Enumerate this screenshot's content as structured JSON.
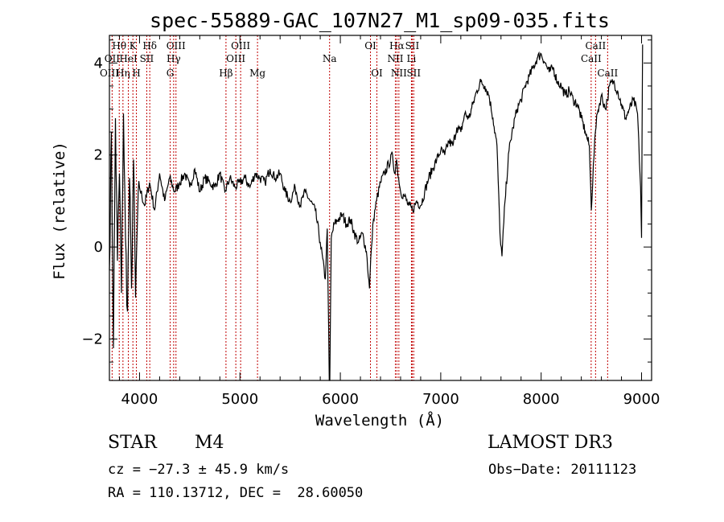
{
  "chart_data": {
    "type": "line",
    "title": "spec-55889-GAC_107N27_M1_sp09-035.fits",
    "xlabel": "Wavelength (Å)",
    "ylabel": "Flux (relative)",
    "xlim": [
      3700,
      9100
    ],
    "ylim": [
      -2.9,
      4.6
    ],
    "xticks": [
      4000,
      5000,
      6000,
      7000,
      8000,
      9000
    ],
    "xtick_labels": [
      "4000",
      "5000",
      "6000",
      "7000",
      "8000",
      "9000"
    ],
    "yticks": [
      -2,
      0,
      2,
      4
    ],
    "ytick_labels": [
      "−2",
      "0",
      "2",
      "4"
    ],
    "grid": false,
    "series": [
      {
        "name": "spectrum",
        "x": [
          3700,
          3720,
          3740,
          3760,
          3780,
          3800,
          3820,
          3840,
          3860,
          3880,
          3900,
          3920,
          3940,
          3960,
          3980,
          4000,
          4050,
          4100,
          4150,
          4200,
          4250,
          4300,
          4350,
          4400,
          4450,
          4500,
          4550,
          4600,
          4650,
          4700,
          4750,
          4800,
          4850,
          4900,
          4950,
          5000,
          5050,
          5100,
          5150,
          5200,
          5250,
          5300,
          5350,
          5400,
          5450,
          5500,
          5550,
          5600,
          5650,
          5700,
          5750,
          5800,
          5850,
          5870,
          5890,
          5895,
          5910,
          5940,
          5980,
          6020,
          6060,
          6100,
          6140,
          6180,
          6220,
          6260,
          6290,
          6310,
          6330,
          6360,
          6400,
          6440,
          6480,
          6520,
          6540,
          6560,
          6580,
          6600,
          6640,
          6680,
          6720,
          6760,
          6800,
          6840,
          6880,
          6920,
          6960,
          7000,
          7040,
          7080,
          7120,
          7160,
          7200,
          7240,
          7280,
          7320,
          7360,
          7400,
          7440,
          7480,
          7520,
          7560,
          7590,
          7610,
          7640,
          7680,
          7720,
          7760,
          7800,
          7840,
          7880,
          7920,
          7960,
          8000,
          8040,
          8080,
          8120,
          8160,
          8200,
          8240,
          8280,
          8320,
          8360,
          8400,
          8440,
          8480,
          8500,
          8520,
          8540,
          8560,
          8600,
          8640,
          8660,
          8680,
          8720,
          8760,
          8800,
          8840,
          8880,
          8920,
          8960,
          8990,
          9000,
          9010
        ],
        "values": [
          -0.5,
          2.5,
          -2.2,
          2.8,
          -0.3,
          1.6,
          -1.0,
          2.9,
          0.2,
          -1.4,
          1.5,
          -0.9,
          1.9,
          -1.1,
          0.6,
          1.3,
          0.9,
          1.4,
          0.8,
          1.6,
          1.0,
          1.5,
          1.2,
          1.4,
          1.6,
          1.3,
          1.7,
          1.2,
          1.5,
          1.4,
          1.3,
          1.6,
          1.2,
          1.5,
          1.3,
          1.4,
          1.5,
          1.3,
          1.6,
          1.5,
          1.4,
          1.7,
          1.5,
          1.6,
          1.2,
          1.0,
          1.3,
          0.9,
          1.2,
          1.0,
          0.8,
          0.1,
          -0.7,
          0.4,
          -2.9,
          -2.9,
          0.2,
          0.5,
          0.6,
          0.7,
          0.5,
          0.6,
          0.3,
          0.1,
          0.3,
          -0.1,
          -0.9,
          0.0,
          0.6,
          1.0,
          1.4,
          1.6,
          1.8,
          2.0,
          1.6,
          1.9,
          1.5,
          1.2,
          1.1,
          0.9,
          0.8,
          1.0,
          0.9,
          1.2,
          1.5,
          1.7,
          1.9,
          2.1,
          2.0,
          2.3,
          2.2,
          2.6,
          2.5,
          2.9,
          2.8,
          3.1,
          3.4,
          3.6,
          3.5,
          3.3,
          2.8,
          2.2,
          0.3,
          -0.2,
          1.0,
          2.1,
          2.6,
          3.0,
          3.2,
          3.5,
          3.7,
          3.9,
          4.1,
          4.2,
          4.0,
          3.8,
          3.9,
          3.6,
          3.5,
          3.3,
          3.4,
          3.2,
          3.1,
          2.8,
          2.5,
          2.2,
          0.8,
          1.8,
          2.5,
          2.9,
          3.3,
          3.0,
          3.2,
          3.5,
          3.6,
          3.4,
          3.1,
          2.8,
          3.0,
          3.2,
          2.9,
          1.3,
          0.2,
          4.4
        ]
      }
    ],
    "line_markers": [
      {
        "name": "Hθ",
        "wavelength": 3798,
        "row": 1
      },
      {
        "name": "OII",
        "wavelength": 3727,
        "row": 2
      },
      {
        "name": "OIII",
        "wavelength": 3700,
        "row": 3
      },
      {
        "name": "Hη",
        "wavelength": 3835,
        "row": 3
      },
      {
        "name": "K",
        "wavelength": 3934,
        "row": 1
      },
      {
        "name": "HeI",
        "wavelength": 3889,
        "row": 2
      },
      {
        "name": "SII",
        "wavelength": 4072,
        "row": 2
      },
      {
        "name": "H",
        "wavelength": 3969,
        "row": 3
      },
      {
        "name": "Hδ",
        "wavelength": 4102,
        "row": 1
      },
      {
        "name": "OIII",
        "wavelength": 4363,
        "row": 1
      },
      {
        "name": "Hγ",
        "wavelength": 4340,
        "row": 2
      },
      {
        "name": "G",
        "wavelength": 4305,
        "row": 3
      },
      {
        "name": "OIII",
        "wavelength": 5007,
        "row": 1
      },
      {
        "name": "OIII",
        "wavelength": 4959,
        "row": 2
      },
      {
        "name": "Hβ",
        "wavelength": 4861,
        "row": 3
      },
      {
        "name": "Mg",
        "wavelength": 5175,
        "row": 3
      },
      {
        "name": "Na",
        "wavelength": 5893,
        "row": 2
      },
      {
        "name": "OI",
        "wavelength": 6300,
        "row": 1
      },
      {
        "name": "OI",
        "wavelength": 6364,
        "row": 3
      },
      {
        "name": "Hα",
        "wavelength": 6563,
        "row": 1
      },
      {
        "name": "NII",
        "wavelength": 6548,
        "row": 2
      },
      {
        "name": "NII",
        "wavelength": 6583,
        "row": 3
      },
      {
        "name": "SII",
        "wavelength": 6716,
        "row": 1
      },
      {
        "name": "Li",
        "wavelength": 6708,
        "row": 2
      },
      {
        "name": "SII",
        "wavelength": 6731,
        "row": 3
      },
      {
        "name": "CaII",
        "wavelength": 8542,
        "row": 1
      },
      {
        "name": "CaII",
        "wavelength": 8498,
        "row": 2
      },
      {
        "name": "CaII",
        "wavelength": 8662,
        "row": 3
      }
    ]
  },
  "info": {
    "object_type": "STAR",
    "subclass": "M4",
    "survey": "LAMOST DR3",
    "redshift_text": "cz = −27.3 ± 45.9 km/s",
    "obs_date": "Obs−Date: 20111123",
    "coords": "RA = 110.13712, DEC =  28.60050"
  },
  "colors": {
    "spectrum": "#000000",
    "marker_line": "#c00000",
    "axes": "#000000",
    "background": "#ffffff"
  }
}
